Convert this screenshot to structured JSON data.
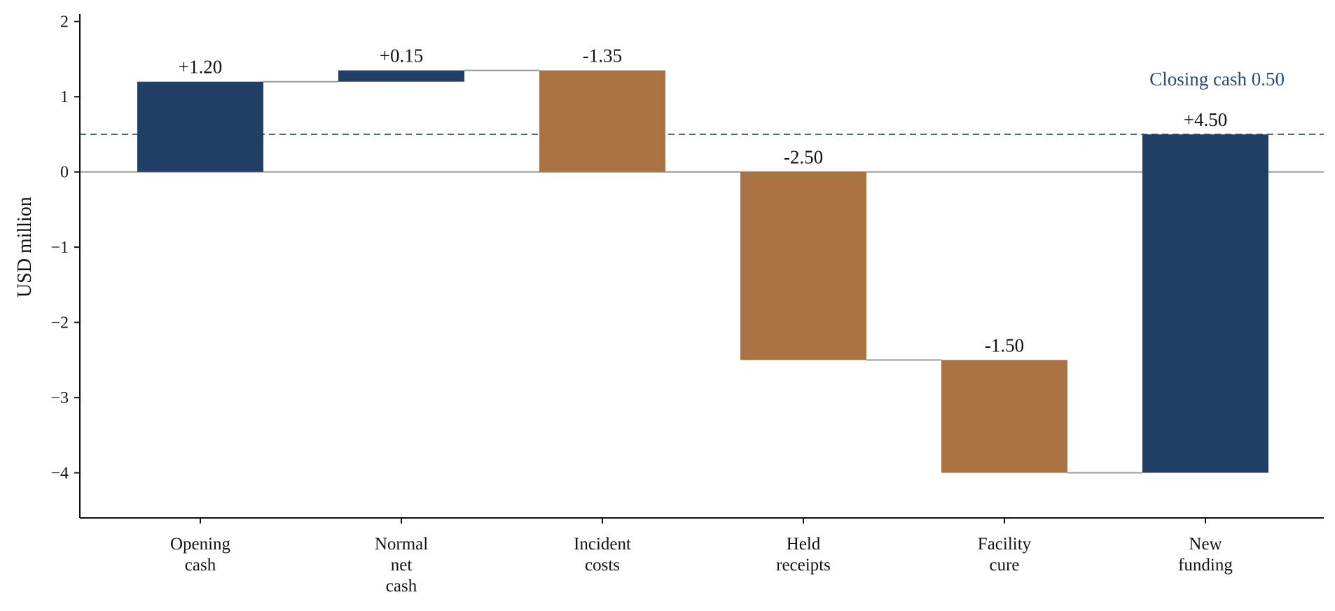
{
  "chart_data": {
    "type": "bar",
    "subtype": "waterfall",
    "title": "",
    "xlabel": "",
    "ylabel": "USD million",
    "ylim": [
      -4.6,
      2.1
    ],
    "yticks": [
      2,
      1,
      0,
      -1,
      -2,
      -3,
      -4
    ],
    "ytick_labels": [
      "2",
      "1",
      "0",
      "−1",
      "−2",
      "−3",
      "−4"
    ],
    "grid": false,
    "legend": "none",
    "categories": [
      [
        "Opening",
        "cash"
      ],
      [
        "Normal",
        "net",
        "cash"
      ],
      [
        "Incident",
        "costs"
      ],
      [
        "Held",
        "receipts"
      ],
      [
        "Facility",
        "cure"
      ],
      [
        "New",
        "funding"
      ]
    ],
    "bars": [
      {
        "start": 0.0,
        "end": 1.2,
        "label": "+1.20",
        "kind": "increase"
      },
      {
        "start": 1.2,
        "end": 1.35,
        "label": "+0.15",
        "kind": "increase"
      },
      {
        "start": 1.35,
        "end": 0.0,
        "label": "-1.35",
        "kind": "decrease"
      },
      {
        "start": 0.0,
        "end": -2.5,
        "label": "-2.50",
        "kind": "decrease"
      },
      {
        "start": -2.5,
        "end": -4.0,
        "label": "-1.50",
        "kind": "decrease"
      },
      {
        "start": -4.0,
        "end": 0.5,
        "label": "+4.50",
        "kind": "increase"
      }
    ],
    "reference_line": {
      "value": 0.5,
      "label": "Closing cash 0.50",
      "style": "dashed"
    },
    "colors": {
      "increase": "#213f66",
      "decrease": "#a87242",
      "connector": "#999999",
      "zero_line": "#999999",
      "reference": "#4f6b5c",
      "reference_label": "#274a73",
      "axis": "#111111"
    }
  }
}
